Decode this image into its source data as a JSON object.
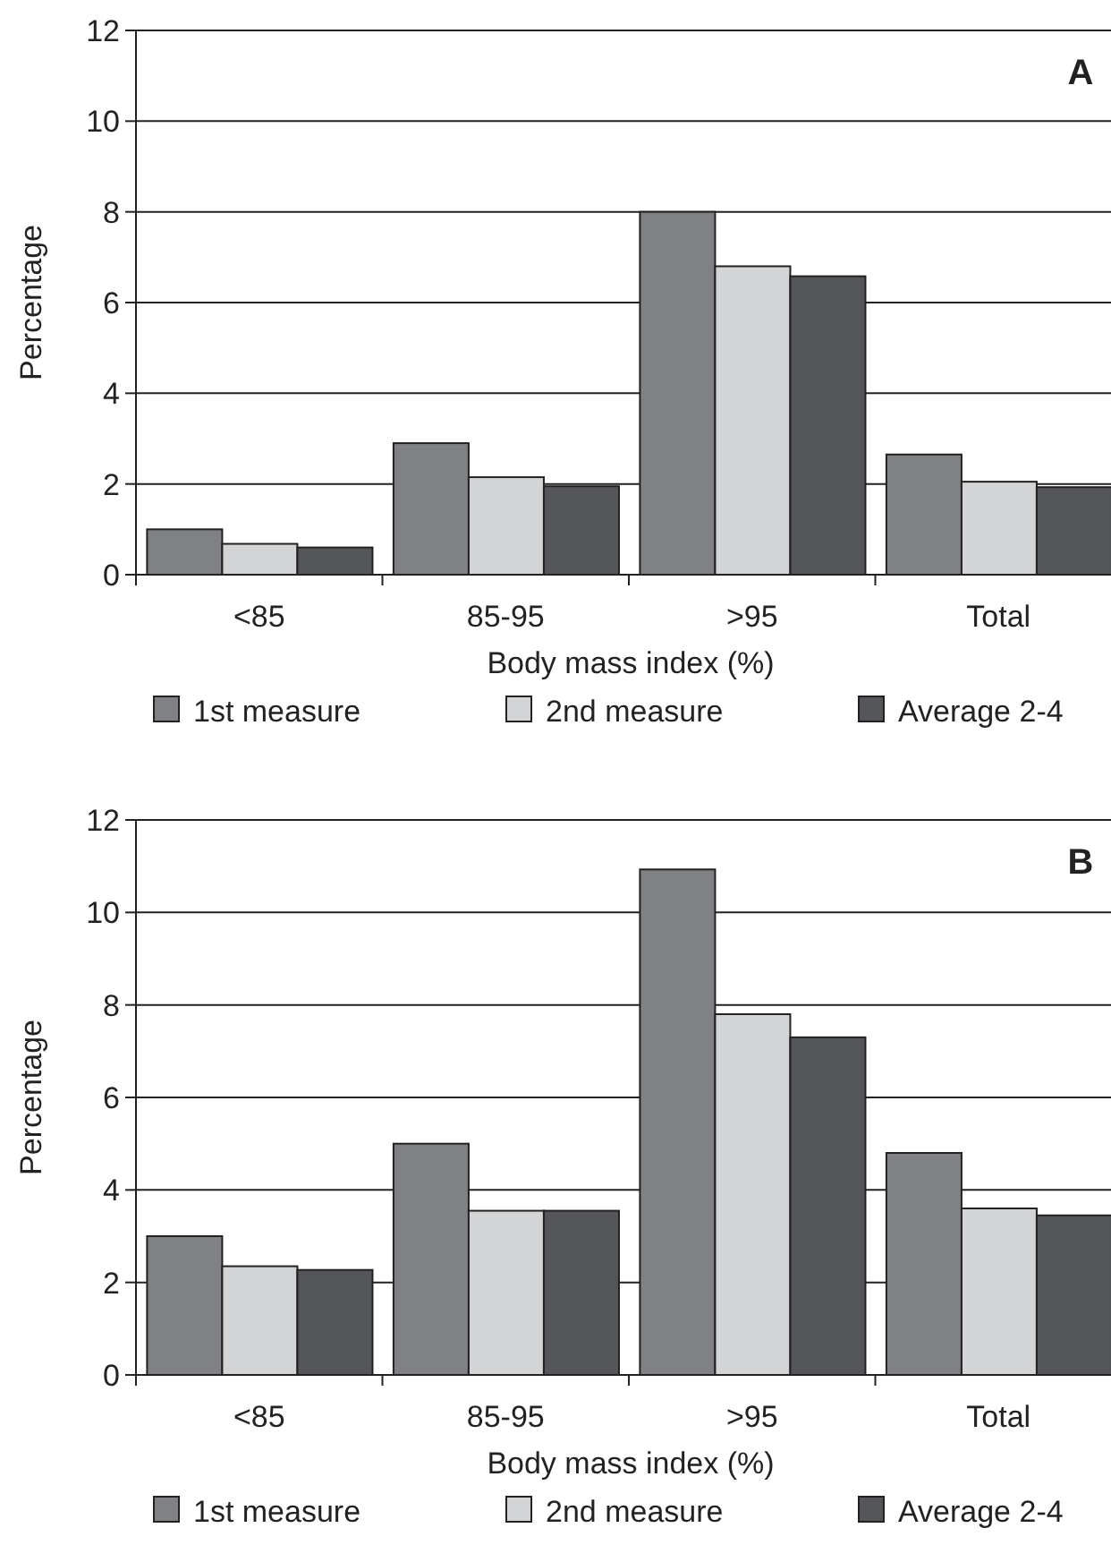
{
  "chart_data": [
    {
      "type": "bar",
      "title": "A",
      "xlabel": "Body mass index (%)",
      "ylabel": "Percentage",
      "categories": [
        "<85",
        "85-95",
        ">95",
        "Total"
      ],
      "series": [
        {
          "name": "1st measure",
          "color": "#808185",
          "values": [
            1.0,
            2.9,
            8.0,
            2.65
          ]
        },
        {
          "name": "2nd measure",
          "color": "#d3d4d6",
          "values": [
            0.68,
            2.15,
            6.8,
            2.05
          ]
        },
        {
          "name": "Average 2-4",
          "color": "#55565a",
          "values": [
            0.6,
            1.95,
            6.58,
            1.93
          ]
        }
      ],
      "ylim": [
        0,
        12
      ],
      "yticks": [
        0,
        2,
        4,
        6,
        8,
        10,
        12
      ],
      "grid": "y",
      "legend": "bottom"
    },
    {
      "type": "bar",
      "title": "B",
      "xlabel": "Body mass index (%)",
      "ylabel": "Percentage",
      "categories": [
        "<85",
        "85-95",
        ">95",
        "Total"
      ],
      "series": [
        {
          "name": "1st measure",
          "color": "#808185",
          "values": [
            3.0,
            5.0,
            10.93,
            4.8
          ]
        },
        {
          "name": "2nd measure",
          "color": "#d3d4d6",
          "values": [
            2.35,
            3.55,
            7.8,
            3.6
          ]
        },
        {
          "name": "Average 2-4",
          "color": "#55565a",
          "values": [
            2.27,
            3.55,
            7.3,
            3.45
          ]
        }
      ],
      "ylim": [
        0,
        12
      ],
      "yticks": [
        0,
        2,
        4,
        6,
        8,
        10,
        12
      ],
      "grid": "y",
      "legend": "bottom"
    }
  ]
}
